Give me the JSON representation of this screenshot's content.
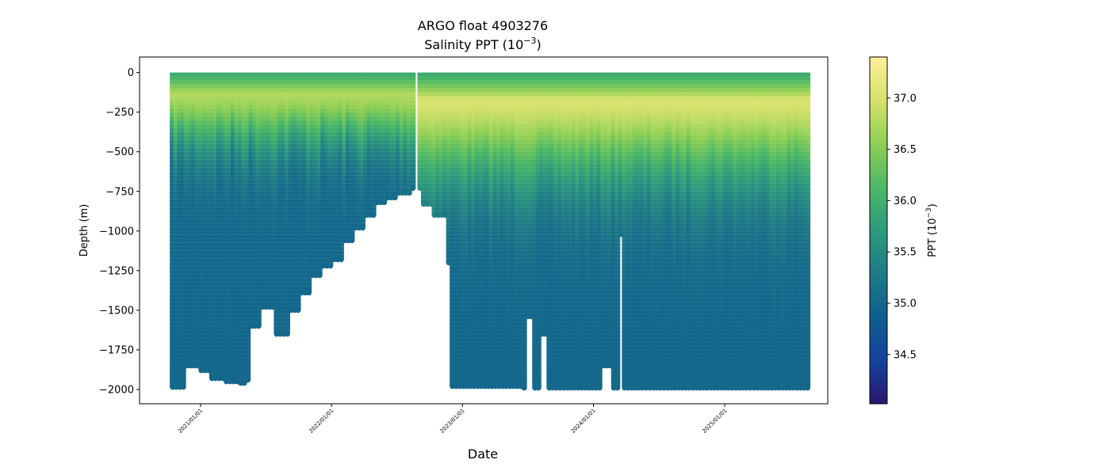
{
  "chart_data": {
    "type": "scatter",
    "title": "ARGO float 4903276",
    "subtitle_prefix": "Salinity PPT (10",
    "subtitle_exp": "−3",
    "subtitle_suffix": ")",
    "xlabel": "Date",
    "ylabel": "Depth (m)",
    "xlim": [
      "2020-07-15",
      "2025-10-15"
    ],
    "ylim": [
      -2090,
      98
    ],
    "x_ticks": [
      {
        "value": "2021-01-01",
        "label": "2021/01/01"
      },
      {
        "value": "2022-01-01",
        "label": "2022/01/01"
      },
      {
        "value": "2023-01-01",
        "label": "2023/01/01"
      },
      {
        "value": "2024-01-01",
        "label": "2024/01/01"
      },
      {
        "value": "2025-01-01",
        "label": "2025/01/01"
      }
    ],
    "y_ticks": [
      {
        "value": 0,
        "label": "0"
      },
      {
        "value": -250,
        "label": "−250"
      },
      {
        "value": -500,
        "label": "−500"
      },
      {
        "value": -750,
        "label": "−750"
      },
      {
        "value": -1000,
        "label": "−1000"
      },
      {
        "value": -1250,
        "label": "−1250"
      },
      {
        "value": -1500,
        "label": "−1500"
      },
      {
        "value": -1750,
        "label": "−1750"
      },
      {
        "value": -2000,
        "label": "−2000"
      }
    ],
    "colorbar": {
      "label_prefix": "PPT (10",
      "label_exp": "−3",
      "label_suffix": ")",
      "colormap": "haline",
      "colors": [
        "#2a186c",
        "#14439c",
        "#0f5f8f",
        "#1e7a86",
        "#2e9a7d",
        "#4cb866",
        "#8fcf55",
        "#d6e26b",
        "#fdef9a"
      ],
      "range": [
        34.02,
        37.4
      ],
      "ticks": [
        {
          "value": 34.5,
          "label": "34.5"
        },
        {
          "value": 35.0,
          "label": "35.0"
        },
        {
          "value": 35.5,
          "label": "35.5"
        },
        {
          "value": 36.0,
          "label": "36.0"
        },
        {
          "value": 36.5,
          "label": "36.5"
        },
        {
          "value": 37.0,
          "label": "37.0"
        }
      ]
    },
    "profiles": {
      "start_date": "2020-10-15",
      "end_date": "2025-08-25",
      "interval_days": 10,
      "data_gap": [
        "2022-08-20",
        "2022-09-05"
      ],
      "bottom_depth_samples": [
        [
          "2020-10-15",
          -1985
        ],
        [
          "2020-11-20",
          -1850
        ],
        [
          "2021-01-01",
          -1880
        ],
        [
          "2021-02-01",
          -1930
        ],
        [
          "2021-03-10",
          -1950
        ],
        [
          "2021-04-20",
          -1960
        ],
        [
          "2021-05-10",
          -1940
        ],
        [
          "2021-05-20",
          -1600
        ],
        [
          "2021-06-15",
          -1480
        ],
        [
          "2021-08-01",
          -1650
        ],
        [
          "2021-09-01",
          -1500
        ],
        [
          "2021-10-01",
          -1390
        ],
        [
          "2021-11-01",
          -1280
        ],
        [
          "2021-12-01",
          -1220
        ],
        [
          "2022-01-01",
          -1180
        ],
        [
          "2022-02-01",
          -1060
        ],
        [
          "2022-03-01",
          -980
        ],
        [
          "2022-04-01",
          -900
        ],
        [
          "2022-05-01",
          -820
        ],
        [
          "2022-06-01",
          -790
        ],
        [
          "2022-07-01",
          -760
        ],
        [
          "2022-08-10",
          -730
        ],
        [
          "2022-09-10",
          -830
        ],
        [
          "2022-10-15",
          -900
        ],
        [
          "2022-11-20",
          -1200
        ],
        [
          "2022-12-01",
          -1980
        ],
        [
          "2023-06-20",
          -1990
        ],
        [
          "2023-07-01",
          -1540
        ],
        [
          "2023-07-20",
          -1990
        ],
        [
          "2023-08-05",
          -1650
        ],
        [
          "2023-08-25",
          -1990
        ],
        [
          "2024-01-20",
          -1850
        ],
        [
          "2024-02-20",
          -1990
        ],
        [
          "2024-03-10",
          -1020
        ],
        [
          "2024-03-20",
          -1990
        ],
        [
          "2025-08-25",
          -1990
        ]
      ],
      "surface_salinity": 35.9,
      "subsurface_max_salinity": 37.0,
      "deep_salinity": 34.95
    }
  }
}
